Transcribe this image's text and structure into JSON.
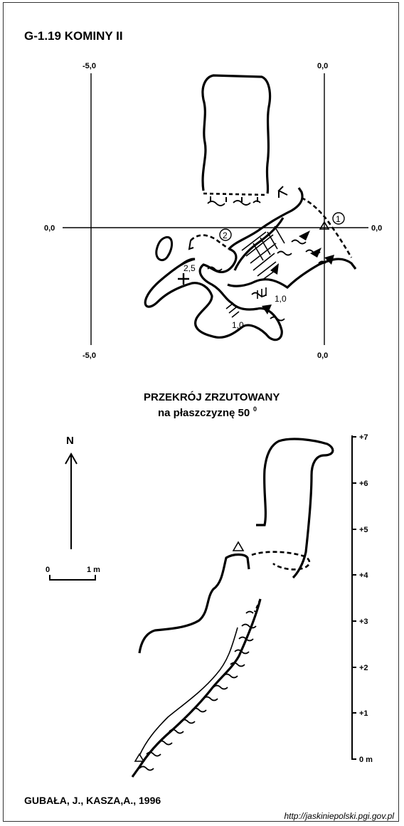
{
  "title": "G-1.19  KOMINY II",
  "plan": {
    "grid_labels": {
      "top_left": "-5,0",
      "top_right": "0,0",
      "mid_left": "0,0",
      "mid_right": "0,0",
      "bottom_left": "-5,0",
      "bottom_right": "0,0"
    },
    "stations": [
      "1",
      "2"
    ],
    "depths": [
      "2,5",
      "1,0",
      "1,0"
    ]
  },
  "section": {
    "title_line1": "PRZEKRÓJ ZRZUTOWANY",
    "title_line2": "na płaszczyznę 50",
    "degree": "0",
    "scale_ticks": [
      "+7",
      "+6",
      "+5",
      "+4",
      "+3",
      "+2",
      "+1",
      "0 m"
    ]
  },
  "north_label": "N",
  "scale_bar": {
    "left": "0",
    "right": "1 m"
  },
  "authors": "GUBAŁA, J., KASZA,A., 1996",
  "url": "http://jaskiniepolski.pgi.gov.pl"
}
